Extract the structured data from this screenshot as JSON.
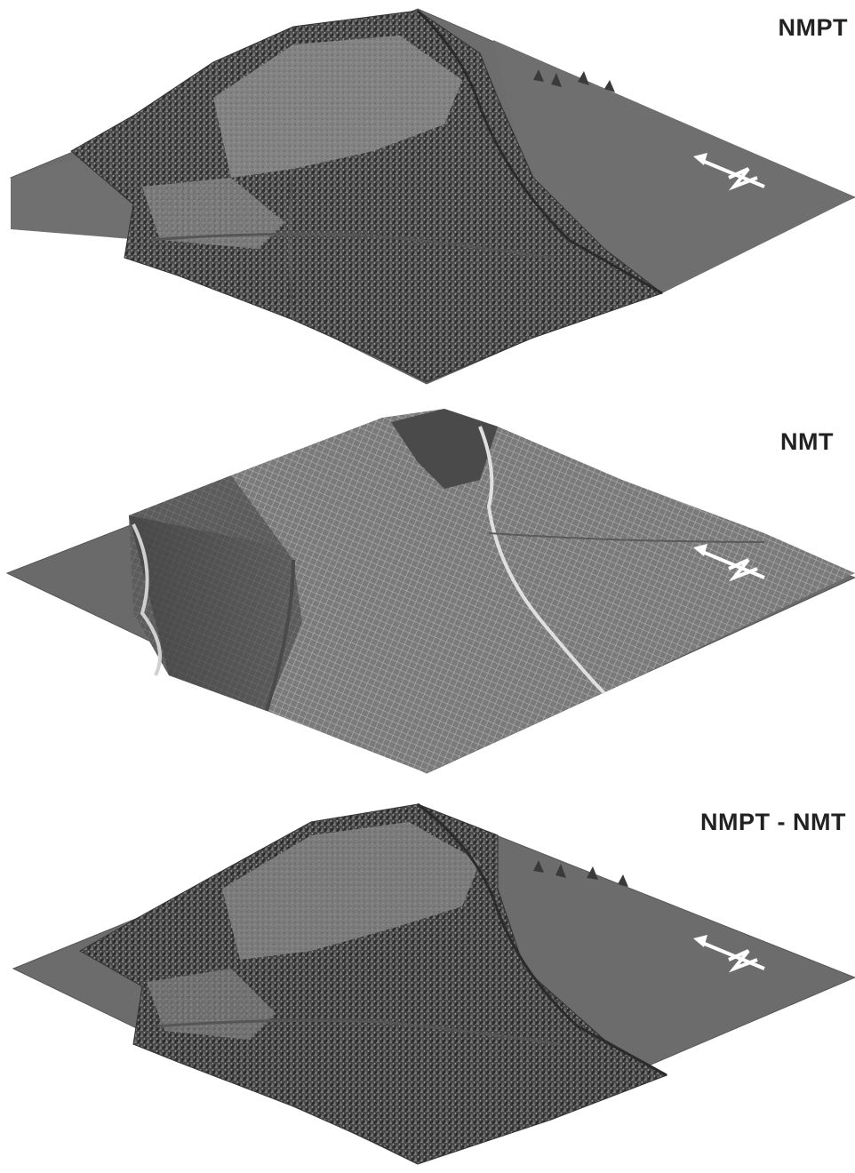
{
  "panels": [
    {
      "label": "NMPT",
      "north_arrow": "north-arrow-icon"
    },
    {
      "label": "NMT",
      "north_arrow": "north-arrow-icon"
    },
    {
      "label": "NMPT - NMT",
      "north_arrow": "north-arrow-icon"
    }
  ],
  "colors": {
    "background": "#ffffff",
    "flat_surface": "#6d6d6d",
    "forest_dark": "#3c3c3c",
    "forest_light": "#8a8a8a",
    "meadow": "#7d7d7d",
    "ridge_highlight": "#d8d8d8",
    "label_text": "#222222",
    "arrow": "#ffffff"
  }
}
